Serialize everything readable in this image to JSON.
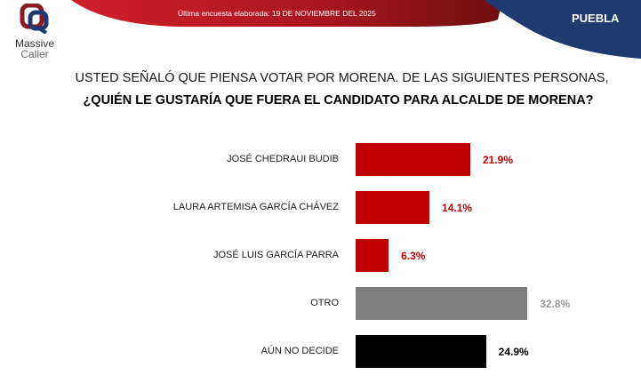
{
  "header": {
    "logo_text": [
      "Massive",
      "Caller"
    ],
    "survey_date": "Última encuesta elaborada: 19 DE NOVIEMBRE DEL 2025",
    "state": "PUEBLA",
    "colors": {
      "red": "#b5121b",
      "blue": "#1f3a6e"
    }
  },
  "question": {
    "line1": "USTED SEÑALÓ QUE PIENSA VOTAR POR MORENA. DE LAS SIGUIENTES PERSONAS,",
    "line2": "¿QUIÉN LE GUSTARÍA QUE FUERA EL CANDIDATO PARA ALCALDE DE MORENA?"
  },
  "chart_data": {
    "type": "bar",
    "orientation": "horizontal",
    "categories": [
      "JOSÉ CHEDRAUI BUDIB",
      "LAURA ARTEMISA GARCÍA CHÁVEZ",
      "JOSÉ LUIS GARCÍA PARRA",
      "OTRO",
      "AÚN NO DECIDE"
    ],
    "values": [
      21.9,
      14.1,
      6.3,
      32.8,
      24.9
    ],
    "labels": [
      "21.9%",
      "14.1%",
      "6.3%",
      "32.8%",
      "24.9%"
    ],
    "colors": [
      "#c00000",
      "#c00000",
      "#c00000",
      "#808080",
      "#000000"
    ],
    "label_colors": [
      "#c00000",
      "#c00000",
      "#c00000",
      "#9a9a9a",
      "#000000"
    ],
    "unit": "%",
    "grid": false,
    "axes_visible": false
  }
}
